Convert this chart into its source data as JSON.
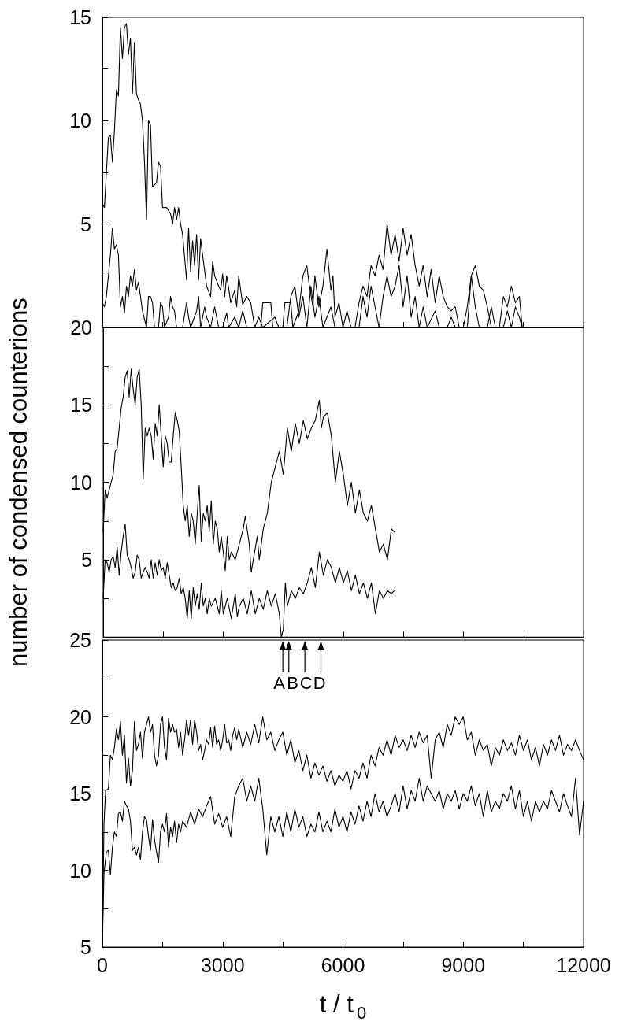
{
  "chart_data": [
    {
      "type": "line",
      "xlim": [
        0,
        12000
      ],
      "xticks": [
        0,
        {
          "value": 1500,
          "label": null
        },
        3000,
        {
          "value": 4500,
          "label": null
        },
        6000,
        {
          "value": 7500,
          "label": null
        },
        9000,
        {
          "value": 10500,
          "label": null
        },
        12000
      ],
      "ylim": [
        0,
        15
      ],
      "yticks": [
        {
          "value": 2.5,
          "label": null
        },
        5,
        {
          "value": 7.5,
          "label": null
        },
        10,
        {
          "value": 12.5,
          "label": null
        },
        15
      ],
      "tick_labels": "y",
      "marker": "none",
      "line_style": "solid",
      "series": [
        {
          "color": "#000000",
          "x": [
            0,
            50,
            100,
            150,
            200,
            250,
            300,
            350,
            400,
            450,
            500,
            550,
            600,
            650,
            700,
            750,
            800,
            850,
            900,
            950,
            1000,
            1050,
            1100,
            1150,
            1200,
            1250,
            1350,
            1400,
            1450,
            1500,
            1600,
            1700,
            1750,
            1800,
            1850,
            1900,
            1950,
            2000,
            2050,
            2100,
            2150,
            2200,
            2250,
            2300,
            2350,
            2400,
            2450,
            2500,
            2600,
            2700,
            2750,
            2800,
            2900,
            2950,
            3000,
            3050,
            3100,
            3150,
            3200,
            3300,
            3350,
            3400,
            3450,
            3500,
            3600,
            3700,
            3800,
            3950,
            4000,
            4200,
            4250,
            4500,
            4550,
            4700,
            4750,
            4900,
            5000,
            5100,
            5150,
            5250,
            5300,
            5400,
            5500,
            5600,
            5700,
            5750,
            5800,
            5900,
            6000,
            6300,
            6400,
            6500,
            6600,
            6700,
            6800,
            6900,
            7000,
            7100,
            7200,
            7300,
            7400,
            7500,
            7600,
            7700,
            7800,
            7900,
            8000,
            8100,
            8200,
            8300,
            8400,
            8500,
            8600,
            8700,
            8800,
            8900,
            9100,
            9200,
            9300,
            9400,
            9500,
            9600,
            9700,
            9900,
            10000,
            10100,
            10200,
            10300,
            10400,
            10470
          ],
          "values": [
            6,
            5.8,
            7.5,
            9.2,
            9.3,
            8,
            9.5,
            11.5,
            11.2,
            14.5,
            13,
            14.5,
            14.7,
            13.2,
            14,
            11.3,
            13.8,
            11.3,
            11,
            10.8,
            10,
            8,
            5.2,
            10,
            9.8,
            6.8,
            7,
            8,
            7.8,
            5.8,
            5.8,
            5.5,
            5,
            5.8,
            5.2,
            5.8,
            5,
            4.5,
            3.4,
            2.3,
            4.8,
            2.7,
            4.2,
            3,
            4.5,
            2.3,
            4.3,
            3.5,
            2,
            1.5,
            3.2,
            2.5,
            2,
            1.8,
            2.6,
            1.5,
            2.5,
            1.9,
            1.2,
            1.8,
            1,
            2.5,
            1.8,
            1.1,
            1.5,
            1.2,
            0,
            0,
            1.2,
            1.2,
            0,
            0,
            1.2,
            1.2,
            0,
            0.8,
            2.5,
            3,
            2.2,
            1,
            2.5,
            1,
            2,
            3.8,
            1.8,
            2.5,
            0.5,
            1.2,
            0,
            0,
            1.2,
            2,
            1.5,
            3,
            2.5,
            3.5,
            2.8,
            5,
            3.5,
            4.5,
            3.2,
            4.8,
            3.5,
            4.5,
            3,
            2,
            3,
            1.5,
            2.8,
            1.2,
            2.5,
            1.5,
            1,
            0.8,
            1,
            0,
            0,
            2.5,
            3,
            2,
            1.8,
            1,
            0,
            0,
            1.5,
            1,
            2,
            1.2,
            1.5,
            0
          ]
        },
        {
          "color": "#000000",
          "x": [
            0,
            50,
            100,
            150,
            200,
            250,
            300,
            350,
            400,
            450,
            500,
            550,
            600,
            650,
            700,
            750,
            800,
            850,
            900,
            950,
            1000,
            1100,
            1150,
            1200,
            1250,
            1300,
            1400,
            1450,
            1500,
            1550,
            1650,
            1700,
            1750,
            1800,
            1850,
            2000,
            2100,
            2150,
            2200,
            2350,
            2400,
            2450,
            2550,
            2600,
            2700,
            2800,
            2850,
            2900,
            3000,
            3100,
            3150,
            3300,
            3400,
            3500,
            3600,
            3800,
            3900,
            4000,
            4300,
            4400,
            4600,
            4700,
            4800,
            4900,
            5000,
            5100,
            5200,
            5300,
            5400,
            5500,
            5700,
            5800,
            6000,
            6100,
            6200,
            6400,
            6500,
            6600,
            6700,
            6800,
            6900,
            7000,
            7100,
            7200,
            7300,
            7400,
            7500,
            7600,
            7700,
            7800,
            7900,
            8000,
            8100,
            8300,
            8400,
            8600,
            8700,
            8800,
            9000,
            9100,
            9200,
            9300,
            9400,
            9600,
            9700,
            9800,
            10000,
            10100,
            10200,
            10300,
            10400,
            10470
          ],
          "values": [
            1.2,
            1,
            1.5,
            2.5,
            3.5,
            4.8,
            3.8,
            4,
            3.5,
            1,
            1.5,
            0.7,
            2,
            1.5,
            2.5,
            2,
            2.8,
            1.8,
            2.2,
            1.5,
            0.8,
            0,
            1.5,
            1.5,
            1.2,
            0,
            0,
            1.2,
            1,
            0,
            0.5,
            1.5,
            1,
            0.8,
            0,
            0,
            1.2,
            0.5,
            0,
            0.8,
            1.5,
            0,
            1,
            0.5,
            0,
            1,
            0.5,
            0,
            0,
            0.7,
            0,
            0.5,
            0,
            0.8,
            0,
            0,
            0.5,
            0,
            0.5,
            0,
            0,
            1.5,
            2,
            0.5,
            1.5,
            0,
            2,
            0.5,
            1.5,
            0,
            1,
            0,
            0,
            0.8,
            0,
            0,
            1.5,
            0.5,
            2,
            1,
            0,
            1.5,
            2.5,
            1.5,
            2,
            3,
            1,
            2.5,
            0.5,
            1.5,
            0,
            1,
            0,
            0.8,
            0,
            0,
            0.5,
            0,
            0,
            1,
            2.5,
            1,
            0,
            0,
            1,
            0,
            0,
            0.8,
            0,
            1,
            0.5,
            0
          ]
        }
      ]
    },
    {
      "type": "line",
      "ylabel": "number of condensed counterions",
      "xlim": [
        0,
        12000
      ],
      "xticks": [
        0,
        {
          "value": 1500,
          "label": null
        },
        3000,
        {
          "value": 4500,
          "label": null
        },
        6000,
        {
          "value": 7500,
          "label": null
        },
        9000,
        {
          "value": 10500,
          "label": null
        },
        12000
      ],
      "ylim": [
        0,
        20
      ],
      "yticks": [
        {
          "value": 2.5,
          "label": null
        },
        5,
        {
          "value": 7.5,
          "label": null
        },
        10,
        {
          "value": 12.5,
          "label": null
        },
        15,
        {
          "value": 17.5,
          "label": null
        },
        20
      ],
      "tick_labels": "y",
      "marker": "none",
      "line_style": "solid",
      "series": [
        {
          "color": "#000000",
          "x": [
            0,
            50,
            100,
            150,
            200,
            250,
            300,
            350,
            400,
            450,
            500,
            550,
            600,
            650,
            700,
            750,
            800,
            850,
            900,
            950,
            1000,
            1050,
            1100,
            1150,
            1200,
            1250,
            1300,
            1350,
            1400,
            1450,
            1500,
            1550,
            1600,
            1650,
            1700,
            1750,
            1800,
            1850,
            1900,
            1950,
            2000,
            2050,
            2100,
            2150,
            2200,
            2250,
            2300,
            2350,
            2400,
            2450,
            2500,
            2550,
            2600,
            2650,
            2700,
            2750,
            2800,
            2850,
            2900,
            2950,
            3000,
            3050,
            3100,
            3150,
            3200,
            3300,
            3400,
            3500,
            3550,
            3650,
            3700,
            3750,
            3850,
            3900,
            4000,
            4100,
            4200,
            4300,
            4400,
            4500,
            4600,
            4700,
            4800,
            4900,
            5000,
            5100,
            5200,
            5300,
            5400,
            5450,
            5500,
            5600,
            5700,
            5800,
            5900,
            6000,
            6100,
            6200,
            6300,
            6400,
            6500,
            6600,
            6700,
            6800,
            6900,
            7000,
            7100,
            7200,
            7270
          ],
          "values": [
            6.8,
            9.5,
            9,
            9.5,
            10,
            10.5,
            12,
            12.2,
            13.5,
            14.8,
            15.5,
            16.8,
            17.2,
            15.5,
            17.3,
            16,
            15,
            16.8,
            17.3,
            15,
            10.2,
            13.5,
            13,
            13.5,
            13,
            11.5,
            13.8,
            13,
            15,
            13,
            11,
            13,
            12.5,
            11.3,
            11.3,
            13,
            14.5,
            14,
            13.3,
            11,
            8.5,
            7.5,
            8.5,
            6.5,
            8,
            7.5,
            6,
            8,
            9.8,
            6.2,
            8,
            7.5,
            8.5,
            6.8,
            8.8,
            6,
            7.5,
            7,
            5.5,
            6.5,
            5.5,
            4.3,
            6.5,
            5,
            5.5,
            5,
            6,
            7,
            7.8,
            6,
            4.2,
            5,
            6.5,
            5,
            7,
            8,
            10,
            11,
            12,
            10.5,
            13.5,
            12,
            13.8,
            12.5,
            14,
            12.8,
            13.5,
            14,
            15.3,
            13.5,
            14.2,
            14.5,
            13,
            10,
            12,
            10.5,
            8.5,
            10,
            8,
            9.5,
            8,
            7.5,
            8.5,
            7,
            5.5,
            6,
            5,
            7,
            6.8
          ]
        },
        {
          "color": "#000000",
          "x": [
            0,
            50,
            100,
            150,
            200,
            250,
            300,
            350,
            400,
            450,
            500,
            550,
            600,
            650,
            700,
            750,
            800,
            850,
            900,
            950,
            1000,
            1050,
            1100,
            1150,
            1200,
            1250,
            1300,
            1350,
            1400,
            1450,
            1500,
            1550,
            1600,
            1650,
            1700,
            1750,
            1800,
            1850,
            1900,
            1950,
            2000,
            2050,
            2100,
            2150,
            2200,
            2250,
            2300,
            2350,
            2400,
            2450,
            2500,
            2550,
            2600,
            2650,
            2700,
            2800,
            2900,
            2950,
            3000,
            3100,
            3200,
            3300,
            3350,
            3400,
            3500,
            3600,
            3700,
            3800,
            3900,
            4000,
            4100,
            4200,
            4300,
            4400,
            4450,
            4500,
            4550,
            4600,
            4700,
            4800,
            4900,
            5000,
            5100,
            5200,
            5300,
            5400,
            5500,
            5600,
            5700,
            5800,
            5900,
            6000,
            6100,
            6200,
            6300,
            6400,
            6500,
            6600,
            6700,
            6800,
            6900,
            7000,
            7100,
            7200,
            7270
          ],
          "values": [
            2.5,
            5,
            4.8,
            4.2,
            5,
            5.2,
            4.5,
            5.8,
            4,
            5.5,
            6.5,
            7.3,
            5.3,
            5,
            4.5,
            3.8,
            4.2,
            5.3,
            5,
            3.8,
            4.2,
            4.5,
            4.2,
            3.8,
            5,
            3.8,
            4.8,
            4,
            5,
            4.3,
            4.5,
            3.8,
            4.8,
            4,
            3.2,
            3.5,
            3,
            3.2,
            3.8,
            2.8,
            3.2,
            2.5,
            1.2,
            3,
            1.2,
            3.2,
            2,
            2.8,
            1.8,
            3.5,
            2,
            2.5,
            1.5,
            2.5,
            2,
            2.5,
            1.5,
            3,
            1.5,
            2.5,
            1.2,
            2.8,
            1.3,
            2,
            2.5,
            1.5,
            3,
            1.5,
            2.5,
            1.8,
            3,
            2,
            2.8,
            1.5,
            0,
            0.5,
            3.5,
            2,
            3,
            2.5,
            3.2,
            2.8,
            3.5,
            4.5,
            3.2,
            5.5,
            4,
            5,
            4.5,
            3.5,
            4.5,
            3.5,
            4.3,
            3,
            4,
            2.8,
            3.5,
            2.5,
            3.5,
            1.5,
            3,
            2.5,
            3,
            2.8,
            3
          ]
        }
      ]
    },
    {
      "type": "line",
      "xlabel": "t / t$_{0}$",
      "xlim": [
        0,
        12000
      ],
      "xticks": [
        0,
        {
          "value": 1500,
          "label": null
        },
        3000,
        {
          "value": 4500,
          "label": null
        },
        6000,
        {
          "value": 7500,
          "label": null
        },
        9000,
        {
          "value": 10500,
          "label": null
        },
        12000
      ],
      "ylim": [
        5,
        25
      ],
      "yticks": [
        5,
        {
          "value": 7.5,
          "label": null
        },
        10,
        {
          "value": 12.5,
          "label": null
        },
        15,
        {
          "value": 17.5,
          "label": null
        },
        20,
        {
          "value": 22.5,
          "label": null
        },
        25
      ],
      "marker": "none",
      "line_style": "solid",
      "annotations": [
        {
          "text": "A",
          "x": 4500
        },
        {
          "text": "B",
          "x": 4650
        },
        {
          "text": "C",
          "x": 5050
        },
        {
          "text": "D",
          "x": 5450
        }
      ],
      "series": [
        {
          "color": "#000000",
          "x": [
            0,
            40,
            80,
            150,
            200,
            250,
            300,
            350,
            400,
            450,
            500,
            550,
            600,
            650,
            700,
            750,
            800,
            850,
            900,
            950,
            1000,
            1050,
            1100,
            1150,
            1200,
            1250,
            1300,
            1350,
            1400,
            1450,
            1500,
            1550,
            1600,
            1650,
            1700,
            1750,
            1800,
            1850,
            1900,
            1950,
            2000,
            2050,
            2100,
            2150,
            2200,
            2250,
            2300,
            2350,
            2400,
            2450,
            2500,
            2550,
            2600,
            2650,
            2700,
            2750,
            2800,
            2850,
            2900,
            2950,
            3000,
            3050,
            3100,
            3150,
            3200,
            3250,
            3300,
            3350,
            3400,
            3500,
            3600,
            3700,
            3800,
            3900,
            4000,
            4100,
            4200,
            4300,
            4400,
            4500,
            4600,
            4700,
            4800,
            4900,
            5000,
            5100,
            5200,
            5300,
            5400,
            5500,
            5600,
            5700,
            5800,
            5900,
            6000,
            6100,
            6200,
            6300,
            6400,
            6500,
            6600,
            6700,
            6800,
            6900,
            7000,
            7100,
            7200,
            7300,
            7400,
            7500,
            7600,
            7700,
            7800,
            7900,
            8000,
            8100,
            8200,
            8300,
            8400,
            8500,
            8600,
            8700,
            8800,
            8900,
            9000,
            9100,
            9200,
            9300,
            9400,
            9500,
            9600,
            9700,
            9800,
            9900,
            10000,
            10100,
            10200,
            10300,
            10400,
            10500,
            10600,
            10700,
            10800,
            10900,
            11000,
            11100,
            11200,
            11300,
            11400,
            11500,
            11600,
            11700,
            11800,
            11900,
            12000
          ],
          "values": [
            5,
            13,
            15.2,
            15.3,
            17.5,
            17.2,
            18,
            19.2,
            18.5,
            19.7,
            17.5,
            18.8,
            15.7,
            17.3,
            15.5,
            16.5,
            19.7,
            17.8,
            18.2,
            19,
            17.3,
            19,
            19.5,
            20,
            19,
            19.5,
            17.5,
            16.8,
            17.5,
            19.5,
            20,
            18,
            17.2,
            19.9,
            19,
            19.5,
            19,
            19.2,
            18,
            19,
            17.5,
            18.5,
            19.8,
            18.8,
            19.8,
            18.2,
            19.8,
            19,
            17.8,
            18.2,
            17.2,
            17.8,
            18.5,
            18.2,
            19.3,
            18,
            19.4,
            18.2,
            18.5,
            17.8,
            18.5,
            19.5,
            18.3,
            18.5,
            17.8,
            18.8,
            19.3,
            18.5,
            19.2,
            18,
            19,
            18.2,
            19.5,
            18.3,
            20,
            18.5,
            19,
            17.8,
            18.5,
            19,
            17.5,
            18.5,
            17,
            17.8,
            16.5,
            17.5,
            16,
            17,
            16.2,
            16.8,
            15.8,
            16.5,
            15.5,
            16.2,
            15.8,
            16.5,
            15.3,
            16.5,
            16,
            17,
            16,
            17.5,
            16.8,
            18,
            17.5,
            18.5,
            17.5,
            18.8,
            18,
            18.5,
            17.8,
            18.8,
            18,
            19,
            18.3,
            18.8,
            16,
            18.5,
            19,
            18,
            19.5,
            18.8,
            20,
            19.5,
            20,
            18.5,
            19,
            17.5,
            18.5,
            17.8,
            18.2,
            16.8,
            18,
            17.5,
            18.5,
            17.8,
            18.3,
            17.5,
            18.8,
            17.8,
            18.5,
            17.2,
            18,
            16.8,
            18.2,
            17.5,
            18.5,
            17.8,
            18.8,
            17.5,
            18.2,
            17.8,
            18.5,
            17.8,
            17.2
          ]
        },
        {
          "color": "#000000",
          "x": [
            0,
            40,
            100,
            150,
            200,
            250,
            300,
            350,
            400,
            450,
            500,
            550,
            600,
            650,
            700,
            750,
            800,
            850,
            900,
            950,
            1000,
            1050,
            1100,
            1150,
            1200,
            1250,
            1300,
            1350,
            1400,
            1450,
            1500,
            1550,
            1600,
            1650,
            1700,
            1750,
            1800,
            1850,
            1900,
            1950,
            2000,
            2100,
            2200,
            2300,
            2400,
            2500,
            2600,
            2700,
            2800,
            2900,
            3000,
            3100,
            3200,
            3300,
            3400,
            3500,
            3600,
            3700,
            3800,
            3900,
            4000,
            4100,
            4200,
            4300,
            4400,
            4500,
            4600,
            4700,
            4800,
            4900,
            5000,
            5100,
            5200,
            5300,
            5400,
            5500,
            5600,
            5700,
            5800,
            5900,
            6000,
            6100,
            6200,
            6300,
            6400,
            6500,
            6600,
            6700,
            6800,
            6900,
            7000,
            7100,
            7200,
            7300,
            7400,
            7500,
            7600,
            7700,
            7800,
            7900,
            8000,
            8100,
            8200,
            8300,
            8400,
            8500,
            8600,
            8700,
            8800,
            8900,
            9000,
            9100,
            9200,
            9300,
            9400,
            9500,
            9600,
            9700,
            9800,
            9900,
            10000,
            10100,
            10200,
            10300,
            10400,
            10500,
            10600,
            10700,
            10800,
            10900,
            11000,
            11100,
            11200,
            11300,
            11400,
            11500,
            11600,
            11700,
            11800,
            11900,
            12000
          ],
          "values": [
            5,
            9.8,
            11.2,
            11.3,
            9.7,
            11.5,
            12.5,
            12.2,
            13.7,
            13.8,
            13.2,
            14.5,
            14.2,
            14,
            13.2,
            11.3,
            11.5,
            11,
            11.5,
            10.7,
            12.5,
            13.5,
            13.3,
            12.2,
            11.3,
            13.3,
            12,
            11.2,
            10.5,
            12.5,
            13,
            12.5,
            13.7,
            11.5,
            12.8,
            12.2,
            13.2,
            11.8,
            13,
            12.5,
            13.2,
            12.8,
            13.8,
            13,
            14,
            13.5,
            14.2,
            14.8,
            13,
            13.7,
            12.8,
            13.5,
            12.2,
            14.8,
            15.5,
            16,
            14.5,
            15.5,
            14.5,
            16,
            14,
            11,
            13.5,
            12.5,
            13.5,
            12.2,
            13.8,
            12.5,
            14,
            12.8,
            13.5,
            12.2,
            13,
            12.5,
            13.8,
            12.5,
            13.2,
            12.5,
            14,
            12.8,
            13.5,
            12.5,
            13.8,
            13,
            14.2,
            13.2,
            14.5,
            13.5,
            15,
            13.8,
            14.5,
            13.5,
            14.2,
            15,
            13.8,
            15.5,
            14,
            15.2,
            14.5,
            16,
            14.5,
            15.5,
            15,
            14.5,
            15.2,
            14,
            15,
            14.5,
            15.2,
            14,
            15,
            14.5,
            15.5,
            14.2,
            15,
            13.5,
            15.2,
            13.8,
            14.5,
            14,
            15,
            14.5,
            15.5,
            14,
            15.2,
            13.5,
            14.5,
            13.2,
            14.5,
            13.8,
            14.5,
            14,
            15.2,
            14.5,
            13.8,
            15,
            14.2,
            13.5,
            16,
            12.3,
            14.5
          ]
        }
      ]
    }
  ]
}
